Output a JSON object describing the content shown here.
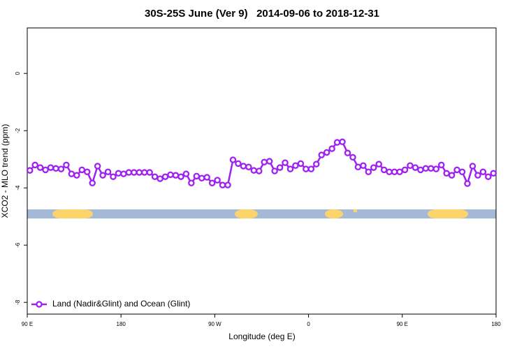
{
  "chart_data": {
    "type": "line",
    "title": "30S-25S June (Ver 9)   2014-09-06 to 2018-12-31",
    "x_label": "Longitude (deg E)",
    "y_label": "XCO2 - MLO trend (ppm)",
    "xlim": [
      90,
      540
    ],
    "ylim": [
      -8.41,
      1.59
    ],
    "xticks": [
      {
        "value": 90,
        "label": "90 E"
      },
      180,
      {
        "value": 270,
        "label": "90 W"
      },
      {
        "value": 360,
        "label": "0"
      },
      {
        "value": 450,
        "label": "90 E"
      },
      {
        "value": 540,
        "label": "180"
      }
    ],
    "yticks": [
      0,
      -2,
      -4,
      -6,
      -8
    ],
    "legend": "bottom-left",
    "x": [
      92.5,
      97.5,
      102.5,
      107.5,
      112.5,
      117.5,
      122.5,
      127.5,
      132.5,
      137.5,
      142.5,
      147.5,
      152.5,
      157.5,
      162.5,
      167.5,
      172.5,
      177.5,
      182.5,
      187.5,
      192.5,
      197.5,
      202.5,
      207.5,
      212.5,
      217.5,
      222.5,
      227.5,
      232.5,
      237.5,
      242.5,
      247.5,
      252.5,
      257.5,
      262.5,
      267.5,
      272.5,
      277.5,
      282.5,
      287.5,
      292.5,
      297.5,
      302.5,
      307.5,
      312.5,
      317.5,
      322.5,
      327.5,
      332.5,
      337.5,
      342.5,
      347.5,
      352.5,
      357.5,
      362.5,
      367.5,
      372.5,
      377.5,
      382.5,
      387.5,
      392.5,
      397.5,
      402.5,
      407.5,
      412.5,
      417.5,
      422.5,
      427.5,
      432.5,
      437.5,
      442.5,
      447.5,
      452.5,
      457.5,
      462.5,
      467.5,
      472.5,
      477.5,
      482.5,
      487.5,
      492.5,
      497.5,
      502.5,
      507.5,
      512.5,
      517.5,
      522.5,
      527.5,
      532.5,
      537.5
    ],
    "series": [
      {
        "name": "Land (Nadir&Glint) and Ocean (Glint)",
        "color": "#a020f0",
        "values": [
          -3.39,
          -3.2,
          -3.29,
          -3.37,
          -3.29,
          -3.32,
          -3.34,
          -3.2,
          -3.51,
          -3.56,
          -3.37,
          -3.44,
          -3.83,
          -3.24,
          -3.56,
          -3.44,
          -3.61,
          -3.49,
          -3.51,
          -3.46,
          -3.46,
          -3.46,
          -3.46,
          -3.46,
          -3.61,
          -3.68,
          -3.61,
          -3.54,
          -3.56,
          -3.61,
          -3.51,
          -3.83,
          -3.59,
          -3.66,
          -3.63,
          -3.83,
          -3.73,
          -3.9,
          -3.9,
          -3.02,
          -3.15,
          -3.24,
          -3.27,
          -3.39,
          -3.41,
          -3.1,
          -3.07,
          -3.41,
          -3.29,
          -3.12,
          -3.34,
          -3.22,
          -3.15,
          -3.34,
          -3.34,
          -3.17,
          -2.85,
          -2.76,
          -2.63,
          -2.41,
          -2.39,
          -2.78,
          -2.93,
          -3.27,
          -3.22,
          -3.44,
          -3.29,
          -3.17,
          -3.37,
          -3.44,
          -3.44,
          -3.44,
          -3.37,
          -3.22,
          -3.29,
          -3.37,
          -3.32,
          -3.32,
          -3.34,
          -3.2,
          -3.49,
          -3.56,
          -3.37,
          -3.44,
          -3.85,
          -3.24,
          -3.56,
          -3.44,
          -3.61,
          -3.49
        ]
      }
    ]
  }
}
